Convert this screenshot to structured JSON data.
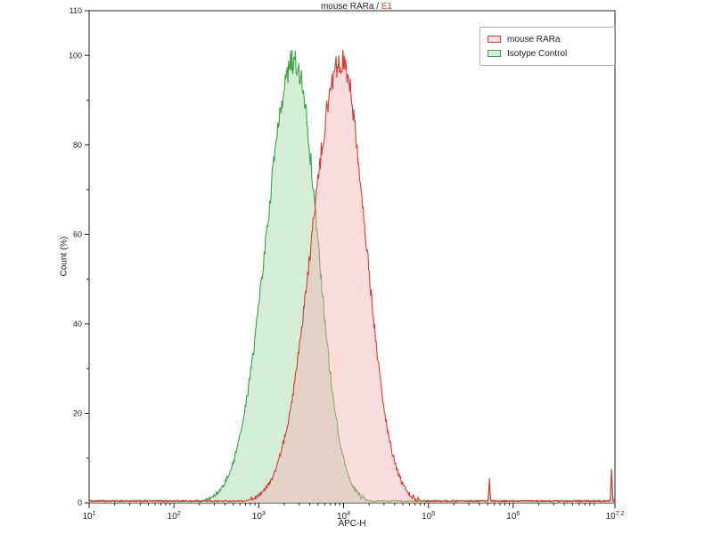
{
  "colors": {
    "axis": "#222222",
    "title_red": "#cc3b2f",
    "legend_border": "#b0b0b0"
  },
  "chart_data": {
    "type": "area",
    "subtype": "flow-cytometry-overlay-histogram",
    "title_black": "mouse RARa / ",
    "title_red": "E1",
    "xlabel": "APC-H",
    "ylabel": "Count  (%)",
    "x_scale": "log10",
    "x_log_range": [
      1,
      7.2
    ],
    "x_tick_exponents": [
      "1",
      "2",
      "3",
      "4",
      "5",
      "6",
      "7.2"
    ],
    "ylim": [
      0,
      110
    ],
    "y_ticks": [
      0,
      20,
      40,
      60,
      80,
      100,
      110
    ],
    "grid": false,
    "legend_position": "top-right-inside",
    "legend": [
      {
        "label": "mouse RARa",
        "stroke": "#d23f3a",
        "fill": "rgba(246,178,178,0.45)"
      },
      {
        "label": "Isotype Control",
        "stroke": "#3aa04a",
        "fill": "rgba(168,219,175,0.50)"
      }
    ],
    "series": [
      {
        "name": "mouse RARa",
        "peak_log10": 3.97,
        "peak_x_approx": "9x10^3",
        "amplitude_pct": 99,
        "sigma_left_decades": 0.34,
        "sigma_right_decades": 0.29
      },
      {
        "name": "Isotype Control",
        "peak_log10": 3.42,
        "peak_x_approx": "2.6x10^3",
        "amplitude_pct": 99,
        "sigma_left_decades": 0.33,
        "sigma_right_decades": 0.27
      }
    ],
    "spikes": [
      {
        "x_log10": 5.72,
        "height_pct": 5
      },
      {
        "x_log10": 7.16,
        "height_pct": 7
      }
    ],
    "baseline_pct": 0.4
  }
}
